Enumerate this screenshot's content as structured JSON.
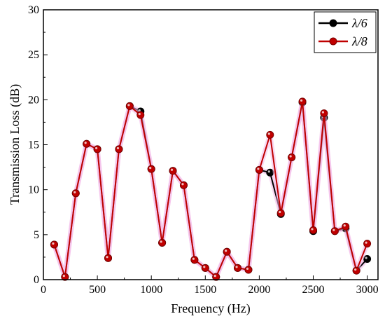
{
  "chart_data": {
    "type": "line",
    "title": "",
    "xlabel": "Frequency (Hz)",
    "ylabel": "Transmission Loss (dB)",
    "xlim": [
      0,
      3100
    ],
    "ylim": [
      0,
      30
    ],
    "xticks": [
      0,
      500,
      1000,
      1500,
      2000,
      2500,
      3000
    ],
    "yticks": [
      0,
      5,
      10,
      15,
      20,
      25,
      30
    ],
    "grid": false,
    "legend_position": "top-right",
    "series": [
      {
        "name": "λ/6",
        "color": "#000000",
        "x": [
          100,
          200,
          300,
          400,
          500,
          600,
          700,
          800,
          900,
          1000,
          1100,
          1200,
          1300,
          1400,
          1500,
          1600,
          1700,
          1800,
          1900,
          2000,
          2100,
          2200,
          2300,
          2400,
          2500,
          2600,
          2700,
          2800,
          2900,
          3000
        ],
        "y": [
          3.9,
          0.3,
          9.6,
          15.1,
          14.5,
          2.4,
          14.5,
          19.3,
          18.7,
          12.3,
          4.1,
          12.1,
          10.5,
          2.2,
          1.3,
          0.3,
          3.1,
          1.3,
          1.1,
          12.2,
          11.9,
          7.3,
          13.6,
          19.7,
          5.4,
          18.0,
          5.4,
          5.7,
          1.0,
          2.3
        ]
      },
      {
        "name": "λ/8",
        "color": "#c00000",
        "x": [
          100,
          200,
          300,
          400,
          500,
          600,
          700,
          800,
          900,
          1000,
          1100,
          1200,
          1300,
          1400,
          1500,
          1600,
          1700,
          1800,
          1900,
          2000,
          2100,
          2200,
          2300,
          2400,
          2500,
          2600,
          2700,
          2800,
          2900,
          3000
        ],
        "y": [
          3.9,
          0.3,
          9.6,
          15.1,
          14.5,
          2.4,
          14.5,
          19.3,
          18.3,
          12.3,
          4.1,
          12.1,
          10.5,
          2.2,
          1.3,
          0.3,
          3.1,
          1.3,
          1.1,
          12.2,
          16.1,
          7.4,
          13.6,
          19.8,
          5.5,
          18.5,
          5.4,
          5.9,
          1.0,
          4.0
        ]
      }
    ]
  }
}
